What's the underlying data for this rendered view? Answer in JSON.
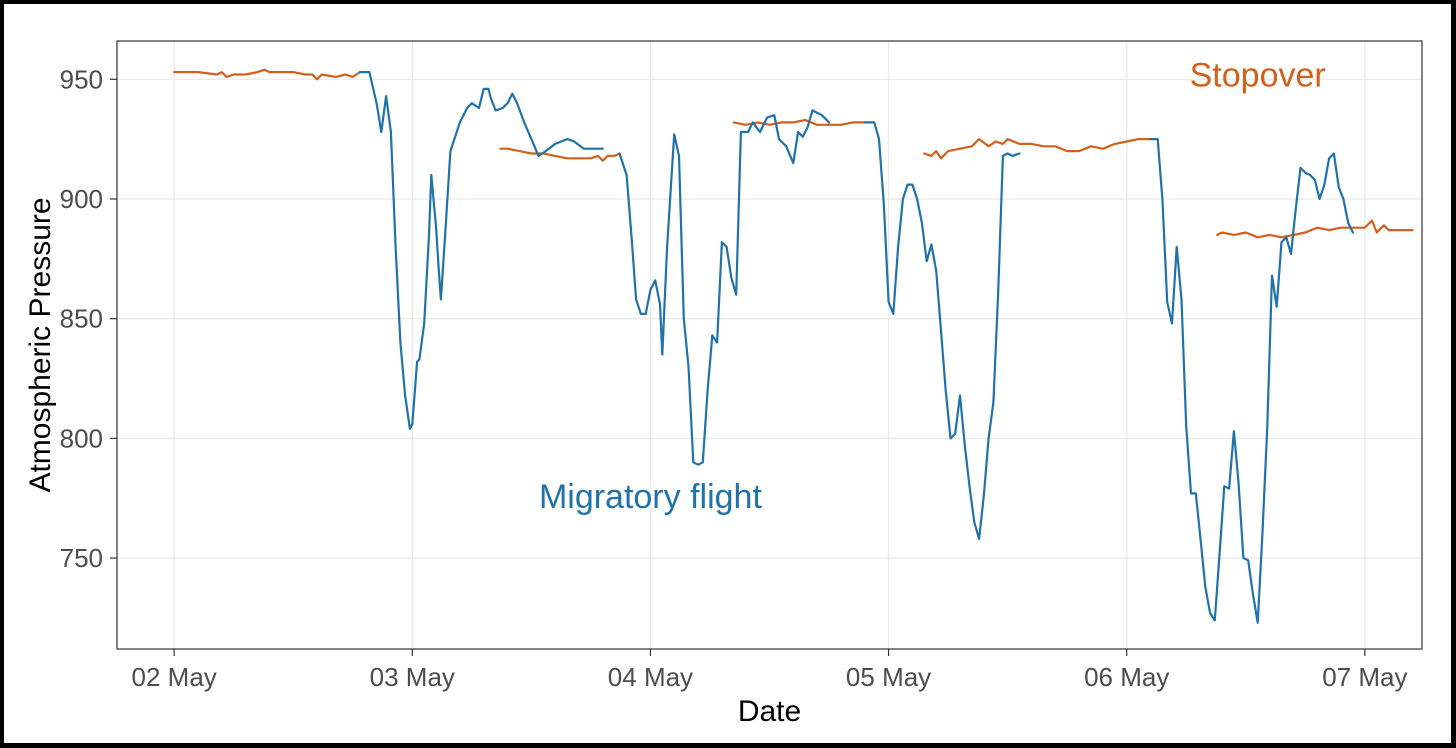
{
  "chart_data": {
    "type": "line",
    "title": "",
    "xlabel": "Date",
    "ylabel": "Atmospheric Pressure",
    "x_ticks": [
      "02 May",
      "03 May",
      "04 May",
      "05 May",
      "06 May",
      "07 May"
    ],
    "y_ticks": [
      750,
      800,
      850,
      900,
      950
    ],
    "xlim": [
      -0.24,
      5.24
    ],
    "ylim": [
      712,
      966
    ],
    "grid": true,
    "legend": "none",
    "x_units": "days since 02 May",
    "annotations": [
      {
        "text": "Stopover",
        "x": 4.55,
        "y": 947,
        "color": "#d2601a"
      },
      {
        "text": "Migratory flight",
        "x": 2.0,
        "y": 771,
        "color": "#1f72aa"
      }
    ],
    "series": [
      {
        "name": "Stopover",
        "color": "#d2601a",
        "segments": [
          [
            [
              0,
              953
            ],
            [
              0.1,
              953
            ],
            [
              0.18,
              952
            ],
            [
              0.2,
              953
            ],
            [
              0.22,
              951
            ],
            [
              0.25,
              952
            ],
            [
              0.3,
              952
            ],
            [
              0.35,
              953
            ],
            [
              0.38,
              954
            ],
            [
              0.4,
              953
            ],
            [
              0.45,
              953
            ],
            [
              0.5,
              953
            ],
            [
              0.55,
              952
            ],
            [
              0.58,
              952
            ],
            [
              0.6,
              950
            ],
            [
              0.62,
              952
            ],
            [
              0.68,
              951
            ],
            [
              0.72,
              952
            ],
            [
              0.75,
              951
            ],
            [
              0.78,
              953
            ]
          ],
          [
            [
              1.37,
              921
            ],
            [
              1.4,
              921
            ],
            [
              1.45,
              920
            ],
            [
              1.5,
              919
            ],
            [
              1.55,
              919
            ],
            [
              1.6,
              918
            ],
            [
              1.65,
              917
            ],
            [
              1.7,
              917
            ],
            [
              1.75,
              917
            ],
            [
              1.78,
              918
            ],
            [
              1.8,
              916
            ],
            [
              1.82,
              918
            ],
            [
              1.85,
              918
            ],
            [
              1.87,
              919
            ]
          ],
          [
            [
              2.35,
              932
            ],
            [
              2.4,
              931
            ],
            [
              2.45,
              932
            ],
            [
              2.5,
              931
            ],
            [
              2.55,
              932
            ],
            [
              2.6,
              932
            ],
            [
              2.65,
              933
            ],
            [
              2.7,
              931
            ],
            [
              2.75,
              931
            ],
            [
              2.8,
              931
            ],
            [
              2.85,
              932
            ],
            [
              2.9,
              932
            ]
          ],
          [
            [
              3.15,
              919
            ],
            [
              3.18,
              918
            ],
            [
              3.2,
              920
            ],
            [
              3.22,
              917
            ],
            [
              3.25,
              920
            ],
            [
              3.3,
              921
            ],
            [
              3.35,
              922
            ],
            [
              3.38,
              925
            ],
            [
              3.42,
              922
            ],
            [
              3.45,
              924
            ],
            [
              3.48,
              923
            ],
            [
              3.5,
              925
            ],
            [
              3.55,
              923
            ],
            [
              3.6,
              923
            ],
            [
              3.65,
              922
            ],
            [
              3.7,
              922
            ],
            [
              3.75,
              920
            ],
            [
              3.8,
              920
            ],
            [
              3.85,
              922
            ],
            [
              3.9,
              921
            ],
            [
              3.95,
              923
            ],
            [
              4.0,
              924
            ],
            [
              4.05,
              925
            ],
            [
              4.1,
              925
            ]
          ],
          [
            [
              4.38,
              885
            ],
            [
              4.4,
              886
            ],
            [
              4.45,
              885
            ],
            [
              4.5,
              886
            ],
            [
              4.55,
              884
            ],
            [
              4.6,
              885
            ],
            [
              4.65,
              884
            ],
            [
              4.7,
              885
            ],
            [
              4.75,
              886
            ],
            [
              4.8,
              888
            ],
            [
              4.85,
              887
            ],
            [
              4.9,
              888
            ],
            [
              4.95,
              888
            ],
            [
              5.0,
              888
            ],
            [
              5.03,
              891
            ],
            [
              5.05,
              886
            ],
            [
              5.08,
              889
            ],
            [
              5.1,
              887
            ],
            [
              5.15,
              887
            ],
            [
              5.2,
              887
            ]
          ]
        ]
      },
      {
        "name": "Migratory flight",
        "color": "#1f72aa",
        "segments": [
          [
            [
              0.78,
              953
            ],
            [
              0.82,
              953
            ],
            [
              0.85,
              940
            ],
            [
              0.87,
              928
            ],
            [
              0.89,
              943
            ],
            [
              0.91,
              928
            ],
            [
              0.93,
              880
            ],
            [
              0.95,
              840
            ],
            [
              0.97,
              818
            ],
            [
              0.99,
              804
            ],
            [
              1.0,
              806
            ],
            [
              1.02,
              832
            ],
            [
              1.03,
              833
            ],
            [
              1.05,
              848
            ],
            [
              1.07,
              885
            ],
            [
              1.08,
              910
            ],
            [
              1.1,
              888
            ],
            [
              1.11,
              872
            ],
            [
              1.12,
              858
            ],
            [
              1.14,
              888
            ],
            [
              1.16,
              920
            ],
            [
              1.2,
              932
            ],
            [
              1.23,
              938
            ],
            [
              1.25,
              940
            ],
            [
              1.28,
              938
            ],
            [
              1.3,
              946
            ],
            [
              1.32,
              946
            ],
            [
              1.33,
              942
            ],
            [
              1.35,
              937
            ],
            [
              1.38,
              938
            ],
            [
              1.4,
              940
            ],
            [
              1.42,
              944
            ],
            [
              1.44,
              940
            ],
            [
              1.47,
              932
            ],
            [
              1.5,
              925
            ],
            [
              1.53,
              918
            ],
            [
              1.56,
              920
            ],
            [
              1.6,
              923
            ],
            [
              1.65,
              925
            ],
            [
              1.68,
              924
            ],
            [
              1.72,
              921
            ],
            [
              1.75,
              921
            ],
            [
              1.8,
              921
            ]
          ],
          [
            [
              1.87,
              919
            ],
            [
              1.9,
              910
            ],
            [
              1.92,
              885
            ],
            [
              1.94,
              858
            ],
            [
              1.96,
              852
            ],
            [
              1.98,
              852
            ],
            [
              2.0,
              862
            ],
            [
              2.02,
              866
            ],
            [
              2.04,
              856
            ],
            [
              2.05,
              835
            ],
            [
              2.07,
              880
            ],
            [
              2.1,
              927
            ],
            [
              2.12,
              918
            ],
            [
              2.14,
              850
            ],
            [
              2.16,
              830
            ],
            [
              2.18,
              790
            ],
            [
              2.2,
              789
            ],
            [
              2.22,
              790
            ],
            [
              2.24,
              820
            ],
            [
              2.26,
              843
            ],
            [
              2.28,
              840
            ],
            [
              2.3,
              882
            ],
            [
              2.32,
              880
            ],
            [
              2.34,
              867
            ],
            [
              2.36,
              860
            ],
            [
              2.38,
              928
            ],
            [
              2.41,
              928
            ],
            [
              2.43,
              932
            ],
            [
              2.46,
              928
            ],
            [
              2.49,
              934
            ],
            [
              2.52,
              935
            ],
            [
              2.54,
              925
            ],
            [
              2.57,
              922
            ],
            [
              2.6,
              915
            ],
            [
              2.62,
              928
            ],
            [
              2.64,
              926
            ],
            [
              2.66,
              930
            ],
            [
              2.68,
              937
            ],
            [
              2.72,
              935
            ],
            [
              2.75,
              932
            ]
          ],
          [
            [
              2.9,
              932
            ],
            [
              2.94,
              932
            ],
            [
              2.96,
              925
            ],
            [
              2.98,
              898
            ],
            [
              3.0,
              857
            ],
            [
              3.02,
              852
            ],
            [
              3.04,
              880
            ],
            [
              3.06,
              900
            ],
            [
              3.08,
              906
            ],
            [
              3.1,
              906
            ],
            [
              3.12,
              900
            ],
            [
              3.14,
              890
            ],
            [
              3.16,
              874
            ],
            [
              3.18,
              881
            ],
            [
              3.2,
              870
            ],
            [
              3.22,
              845
            ],
            [
              3.24,
              820
            ],
            [
              3.26,
              800
            ],
            [
              3.28,
              802
            ],
            [
              3.3,
              818
            ],
            [
              3.32,
              797
            ],
            [
              3.34,
              780
            ],
            [
              3.36,
              765
            ],
            [
              3.38,
              758
            ],
            [
              3.4,
              776
            ],
            [
              3.42,
              800
            ],
            [
              3.44,
              815
            ],
            [
              3.46,
              860
            ],
            [
              3.48,
              918
            ],
            [
              3.5,
              919
            ],
            [
              3.52,
              918
            ],
            [
              3.55,
              919
            ]
          ],
          [
            [
              4.1,
              925
            ],
            [
              4.13,
              925
            ],
            [
              4.15,
              900
            ],
            [
              4.17,
              857
            ],
            [
              4.19,
              848
            ],
            [
              4.21,
              880
            ],
            [
              4.23,
              858
            ],
            [
              4.25,
              805
            ],
            [
              4.27,
              777
            ],
            [
              4.29,
              777
            ],
            [
              4.31,
              758
            ],
            [
              4.33,
              738
            ],
            [
              4.35,
              727
            ],
            [
              4.37,
              724
            ],
            [
              4.39,
              752
            ],
            [
              4.41,
              780
            ],
            [
              4.43,
              779
            ],
            [
              4.45,
              803
            ],
            [
              4.47,
              781
            ],
            [
              4.49,
              750
            ],
            [
              4.51,
              749
            ],
            [
              4.53,
              735
            ],
            [
              4.55,
              723
            ],
            [
              4.57,
              760
            ],
            [
              4.59,
              804
            ],
            [
              4.61,
              868
            ],
            [
              4.63,
              855
            ],
            [
              4.65,
              882
            ],
            [
              4.67,
              884
            ],
            [
              4.69,
              877
            ],
            [
              4.71,
              896
            ],
            [
              4.73,
              913
            ],
            [
              4.75,
              911
            ],
            [
              4.77,
              910
            ],
            [
              4.79,
              908
            ],
            [
              4.81,
              900
            ],
            [
              4.83,
              906
            ],
            [
              4.85,
              917
            ],
            [
              4.87,
              919
            ],
            [
              4.89,
              905
            ],
            [
              4.91,
              900
            ],
            [
              4.93,
              890
            ],
            [
              4.95,
              886
            ]
          ]
        ]
      }
    ]
  }
}
